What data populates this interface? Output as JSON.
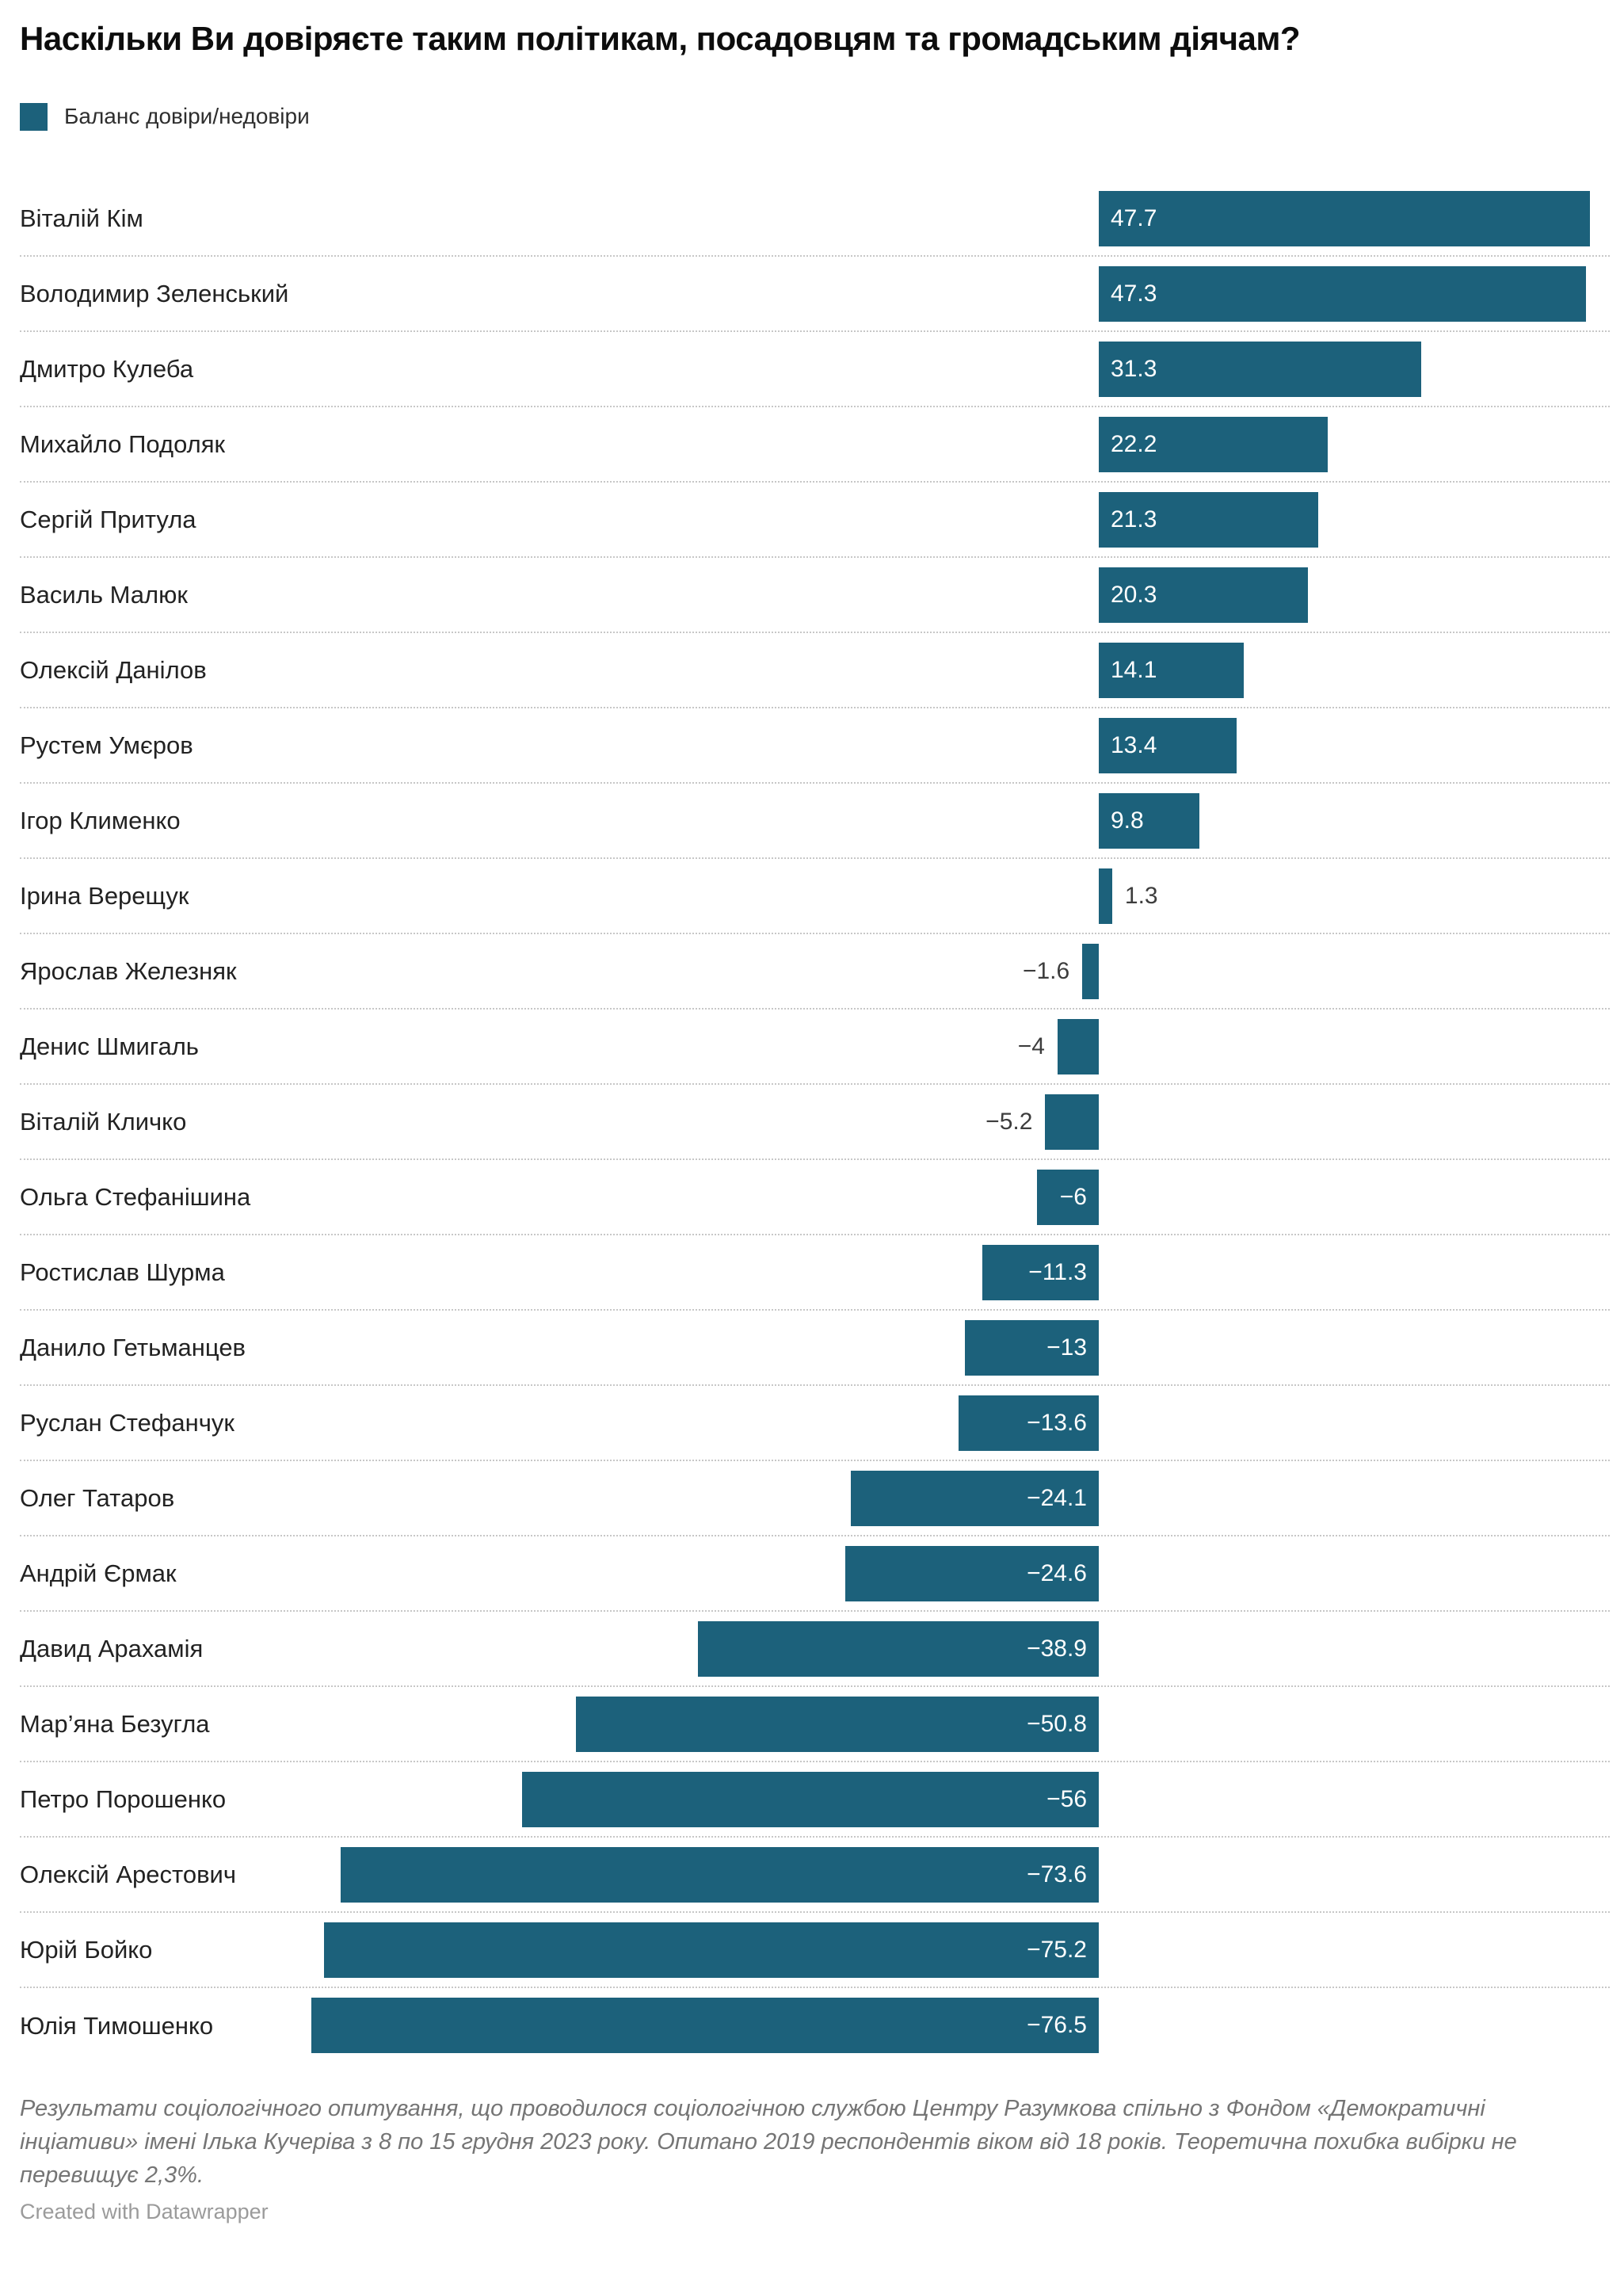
{
  "header": {
    "title": "Наскільки Ви довіряєте таким політикам, посадовцям та громадським діячам?"
  },
  "legend": {
    "label": "Баланс довіри/недовіри",
    "color": "#1c617b"
  },
  "chart_data": {
    "type": "bar",
    "orientation": "horizontal",
    "title": "Наскільки Ви довіряєте таким політикам, посадовцям та громадським діячам?",
    "legend_entries": [
      "Баланс довіри/недовіри"
    ],
    "xlabel": "",
    "ylabel": "",
    "xlim": [
      -80,
      50
    ],
    "grid": false,
    "bar_color": "#1c617b",
    "categories": [
      "Віталій Кім",
      "Володимир Зеленський",
      "Дмитро Кулеба",
      "Михайло Подоляк",
      "Сергій Притула",
      "Василь Малюк",
      "Олексій Данілов",
      "Рустем Умєров",
      "Ігор Клименко",
      "Ірина Верещук",
      "Ярослав Железняк",
      "Денис Шмигаль",
      "Віталій Кличко",
      "Ольга Стефанішина",
      "Ростислав Шурма",
      "Данило Гетьманцев",
      "Руслан Стефанчук",
      "Олег Татаров",
      "Андрій Єрмак",
      "Давид Арахамія",
      "Мар’яна Безугла",
      "Петро Порошенко",
      "Олексій Арестович",
      "Юрій Бойко",
      "Юлія Тимошенко"
    ],
    "values": [
      47.7,
      47.3,
      31.3,
      22.2,
      21.3,
      20.3,
      14.1,
      13.4,
      9.8,
      1.3,
      -1.6,
      -4,
      -5.2,
      -6,
      -11.3,
      -13,
      -13.6,
      -24.1,
      -24.6,
      -38.9,
      -50.8,
      -56,
      -73.6,
      -75.2,
      -76.5
    ],
    "value_labels": [
      "47.7",
      "47.3",
      "31.3",
      "22.2",
      "21.3",
      "20.3",
      "14.1",
      "13.4",
      "9.8",
      "1.3",
      "−1.6",
      "−4",
      "−5.2",
      "−6",
      "−11.3",
      "−13",
      "−13.6",
      "−24.1",
      "−24.6",
      "−38.9",
      "−50.8",
      "−56",
      "−73.6",
      "−75.2",
      "−76.5"
    ]
  },
  "footer": {
    "notes": "Результати соціологічного опитування, що проводилося соціологічною службою Центру Разумкова спільно з Фондом «Демократичні інціативи» імені Ілька Кучеріва з 8 по 15 грудня 2023 року. Опитано 2019 респондентів віком від 18 років. Теоретична похибка вибірки не перевищує 2,3%.",
    "byline": "Created with Datawrapper"
  }
}
